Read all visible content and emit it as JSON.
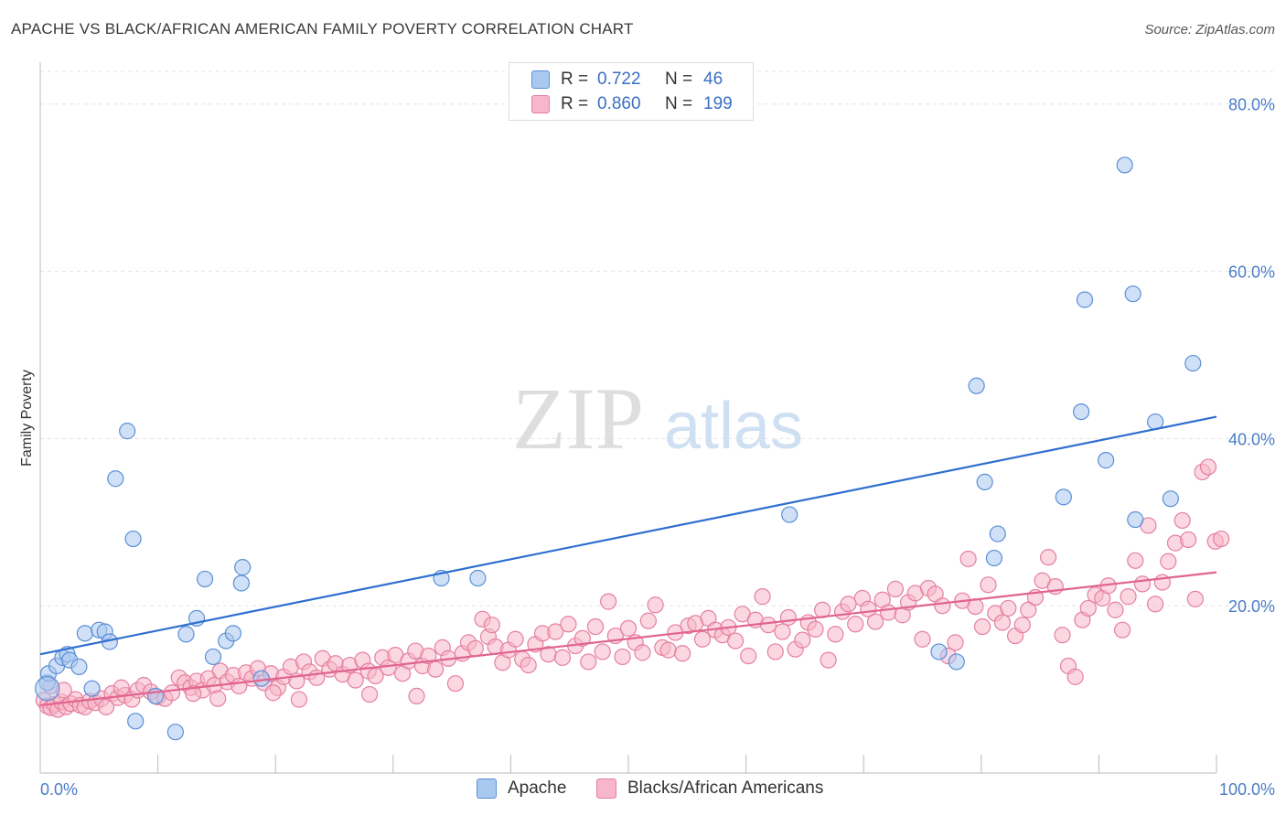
{
  "title": "APACHE VS BLACK/AFRICAN AMERICAN FAMILY POVERTY CORRELATION CHART",
  "source": "Source: ZipAtlas.com",
  "watermark": {
    "zip": "ZIP",
    "atlas": "atlas"
  },
  "legend": {
    "rows": [
      {
        "r_label": "R =",
        "r_value": "0.722",
        "n_label": "N =",
        "n_value": "46"
      },
      {
        "r_label": "R =",
        "r_value": "0.860",
        "n_label": "N =",
        "n_value": "199"
      }
    ]
  },
  "bottom_legend": {
    "apache": "Apache",
    "black": "Blacks/African Americans"
  },
  "colors": {
    "apache_fill": "#a9c8f0",
    "apache_stroke": "#5b8fd6",
    "apache_line": "#2e6fcf",
    "black_fill": "#f7b6c9",
    "black_stroke": "#e57fa1",
    "black_line": "#e0648f",
    "tick_text": "#4a7cc7",
    "grid": "#e3e3e3"
  },
  "chart_data": {
    "type": "scatter",
    "title": "APACHE VS BLACK/AFRICAN AMERICAN FAMILY POVERTY CORRELATION CHART",
    "xlabel": "",
    "ylabel": "Family Poverty",
    "xlim": [
      0,
      100
    ],
    "ylim": [
      0,
      85
    ],
    "x_tick_labels": [
      "0.0%",
      "100.0%"
    ],
    "y_ticks": [
      20,
      40,
      60,
      80
    ],
    "y_tick_labels": [
      "20.0%",
      "40.0%",
      "60.0%",
      "80.0%"
    ],
    "grid": true,
    "legend_position": "top-center",
    "series": [
      {
        "name": "Apache",
        "r": 0.722,
        "n": 46,
        "trend": {
          "x": [
            0,
            100
          ],
          "y": [
            14.2,
            42.6
          ]
        },
        "points": [
          [
            0.6,
            10.8
          ],
          [
            0.7,
            11.9
          ],
          [
            1.4,
            12.8
          ],
          [
            1.9,
            13.8
          ],
          [
            2.3,
            14.2
          ],
          [
            2.5,
            13.5
          ],
          [
            3.3,
            12.7
          ],
          [
            3.8,
            16.7
          ],
          [
            4.4,
            10.1
          ],
          [
            5.0,
            17.1
          ],
          [
            5.5,
            16.9
          ],
          [
            5.9,
            15.7
          ],
          [
            6.4,
            35.2
          ],
          [
            7.4,
            40.9
          ],
          [
            7.9,
            28.0
          ],
          [
            8.1,
            6.2
          ],
          [
            9.8,
            9.2
          ],
          [
            11.5,
            4.9
          ],
          [
            12.4,
            16.6
          ],
          [
            13.3,
            18.5
          ],
          [
            14.0,
            23.2
          ],
          [
            14.7,
            13.9
          ],
          [
            15.8,
            15.8
          ],
          [
            16.4,
            16.7
          ],
          [
            17.1,
            22.7
          ],
          [
            17.2,
            24.6
          ],
          [
            18.8,
            11.3
          ],
          [
            34.1,
            23.3
          ],
          [
            37.2,
            23.3
          ],
          [
            63.7,
            30.9
          ],
          [
            76.4,
            14.5
          ],
          [
            77.9,
            13.3
          ],
          [
            79.6,
            46.3
          ],
          [
            80.3,
            34.8
          ],
          [
            81.1,
            25.7
          ],
          [
            81.4,
            28.6
          ],
          [
            87.0,
            33.0
          ],
          [
            88.5,
            43.2
          ],
          [
            88.8,
            56.6
          ],
          [
            90.6,
            37.4
          ],
          [
            92.2,
            72.7
          ],
          [
            92.9,
            57.3
          ],
          [
            93.1,
            30.3
          ],
          [
            94.8,
            42.0
          ],
          [
            96.1,
            32.8
          ],
          [
            98.0,
            49.0
          ]
        ]
      },
      {
        "name": "Blacks/African Americans",
        "r": 0.86,
        "n": 199,
        "trend": {
          "x": [
            0,
            100
          ],
          "y": [
            8.1,
            24.0
          ]
        },
        "points": [
          [
            0.3,
            8.7
          ],
          [
            0.6,
            8.0
          ],
          [
            0.9,
            7.8
          ],
          [
            1.2,
            8.2
          ],
          [
            1.5,
            7.6
          ],
          [
            1.8,
            8.5
          ],
          [
            2.2,
            7.9
          ],
          [
            2.6,
            8.3
          ],
          [
            3.0,
            8.8
          ],
          [
            3.4,
            8.1
          ],
          [
            3.8,
            7.9
          ],
          [
            4.2,
            8.6
          ],
          [
            4.7,
            8.4
          ],
          [
            5.2,
            8.9
          ],
          [
            5.6,
            7.9
          ],
          [
            6.1,
            9.5
          ],
          [
            6.6,
            9.0
          ],
          [
            7.2,
            9.3
          ],
          [
            7.8,
            8.8
          ],
          [
            8.3,
            9.9
          ],
          [
            8.8,
            10.5
          ],
          [
            9.4,
            9.7
          ],
          [
            10.0,
            9.1
          ],
          [
            10.6,
            8.9
          ],
          [
            11.2,
            9.6
          ],
          [
            11.8,
            11.4
          ],
          [
            12.3,
            10.8
          ],
          [
            12.8,
            10.2
          ],
          [
            13.3,
            11.0
          ],
          [
            13.8,
            9.9
          ],
          [
            14.3,
            11.3
          ],
          [
            14.8,
            10.5
          ],
          [
            15.3,
            12.2
          ],
          [
            15.9,
            10.9
          ],
          [
            16.4,
            11.7
          ],
          [
            16.9,
            10.4
          ],
          [
            17.5,
            12.0
          ],
          [
            18.0,
            11.3
          ],
          [
            18.5,
            12.5
          ],
          [
            19.0,
            10.8
          ],
          [
            19.6,
            11.9
          ],
          [
            20.2,
            10.2
          ],
          [
            20.7,
            11.5
          ],
          [
            21.3,
            12.7
          ],
          [
            21.8,
            11.0
          ],
          [
            22.4,
            13.3
          ],
          [
            22.9,
            12.1
          ],
          [
            23.5,
            11.4
          ],
          [
            24.0,
            13.7
          ],
          [
            24.6,
            12.4
          ],
          [
            25.1,
            13.1
          ],
          [
            25.7,
            11.8
          ],
          [
            26.3,
            12.9
          ],
          [
            26.8,
            11.1
          ],
          [
            27.4,
            13.5
          ],
          [
            27.9,
            12.2
          ],
          [
            28.5,
            11.6
          ],
          [
            29.1,
            13.8
          ],
          [
            29.6,
            12.6
          ],
          [
            30.2,
            14.1
          ],
          [
            30.8,
            11.9
          ],
          [
            31.3,
            13.4
          ],
          [
            31.9,
            14.6
          ],
          [
            32.5,
            12.8
          ],
          [
            33.0,
            14.0
          ],
          [
            33.6,
            12.4
          ],
          [
            34.2,
            15.0
          ],
          [
            34.7,
            13.7
          ],
          [
            35.3,
            10.7
          ],
          [
            35.9,
            14.3
          ],
          [
            36.4,
            15.6
          ],
          [
            37.0,
            14.9
          ],
          [
            37.6,
            18.4
          ],
          [
            38.1,
            16.3
          ],
          [
            38.7,
            15.1
          ],
          [
            39.3,
            13.2
          ],
          [
            39.8,
            14.7
          ],
          [
            40.4,
            16.0
          ],
          [
            41.0,
            13.6
          ],
          [
            41.5,
            12.9
          ],
          [
            42.1,
            15.4
          ],
          [
            42.7,
            16.7
          ],
          [
            43.2,
            14.2
          ],
          [
            43.8,
            16.9
          ],
          [
            44.4,
            13.8
          ],
          [
            44.9,
            17.8
          ],
          [
            45.5,
            15.2
          ],
          [
            46.1,
            16.1
          ],
          [
            46.6,
            13.3
          ],
          [
            47.2,
            17.5
          ],
          [
            47.8,
            14.5
          ],
          [
            48.3,
            20.5
          ],
          [
            48.9,
            16.4
          ],
          [
            49.5,
            13.9
          ],
          [
            50.0,
            17.3
          ],
          [
            50.6,
            15.6
          ],
          [
            51.2,
            14.4
          ],
          [
            51.7,
            18.2
          ],
          [
            52.3,
            20.1
          ],
          [
            52.9,
            15.0
          ],
          [
            53.4,
            14.7
          ],
          [
            54.0,
            16.8
          ],
          [
            54.6,
            14.3
          ],
          [
            55.1,
            17.6
          ],
          [
            55.7,
            17.9
          ],
          [
            56.3,
            16.0
          ],
          [
            56.8,
            18.5
          ],
          [
            57.4,
            17.1
          ],
          [
            58.0,
            16.5
          ],
          [
            58.5,
            17.4
          ],
          [
            59.1,
            15.8
          ],
          [
            59.7,
            19.0
          ],
          [
            60.2,
            14.0
          ],
          [
            60.8,
            18.3
          ],
          [
            61.4,
            21.1
          ],
          [
            61.9,
            17.7
          ],
          [
            62.5,
            14.5
          ],
          [
            63.1,
            16.9
          ],
          [
            63.6,
            18.6
          ],
          [
            64.2,
            14.8
          ],
          [
            64.8,
            15.9
          ],
          [
            65.3,
            18.0
          ],
          [
            65.9,
            17.2
          ],
          [
            66.5,
            19.5
          ],
          [
            67.0,
            13.5
          ],
          [
            67.6,
            16.6
          ],
          [
            68.2,
            19.3
          ],
          [
            68.7,
            20.2
          ],
          [
            69.3,
            17.8
          ],
          [
            69.9,
            20.9
          ],
          [
            70.4,
            19.6
          ],
          [
            71.0,
            18.1
          ],
          [
            71.6,
            20.7
          ],
          [
            72.1,
            19.2
          ],
          [
            72.7,
            22.0
          ],
          [
            73.3,
            18.9
          ],
          [
            73.8,
            20.4
          ],
          [
            74.4,
            21.5
          ],
          [
            75.0,
            16.0
          ],
          [
            75.5,
            22.1
          ],
          [
            76.1,
            21.4
          ],
          [
            76.7,
            20.0
          ],
          [
            77.2,
            14.0
          ],
          [
            77.8,
            15.6
          ],
          [
            78.4,
            20.6
          ],
          [
            78.9,
            25.6
          ],
          [
            79.5,
            19.9
          ],
          [
            80.1,
            17.5
          ],
          [
            80.6,
            22.5
          ],
          [
            81.2,
            19.1
          ],
          [
            81.8,
            18.0
          ],
          [
            82.3,
            19.7
          ],
          [
            82.9,
            16.4
          ],
          [
            83.5,
            17.7
          ],
          [
            84.0,
            19.5
          ],
          [
            84.6,
            21.0
          ],
          [
            85.2,
            23.0
          ],
          [
            85.7,
            25.8
          ],
          [
            86.3,
            22.3
          ],
          [
            86.9,
            16.5
          ],
          [
            87.4,
            12.8
          ],
          [
            88.0,
            11.5
          ],
          [
            88.6,
            18.3
          ],
          [
            89.1,
            19.7
          ],
          [
            89.7,
            21.3
          ],
          [
            90.3,
            20.9
          ],
          [
            90.8,
            22.4
          ],
          [
            91.4,
            19.5
          ],
          [
            92.0,
            17.1
          ],
          [
            92.5,
            21.1
          ],
          [
            93.1,
            25.4
          ],
          [
            93.7,
            22.6
          ],
          [
            94.2,
            29.6
          ],
          [
            94.8,
            20.2
          ],
          [
            95.4,
            22.8
          ],
          [
            95.9,
            25.3
          ],
          [
            96.5,
            27.5
          ],
          [
            97.1,
            30.2
          ],
          [
            97.6,
            27.9
          ],
          [
            98.2,
            20.8
          ],
          [
            98.8,
            36.0
          ],
          [
            99.3,
            36.6
          ],
          [
            99.9,
            27.7
          ],
          [
            100.4,
            28.0
          ],
          [
            0.9,
            10.4
          ],
          [
            2.0,
            9.9
          ],
          [
            6.9,
            10.2
          ],
          [
            13.0,
            9.5
          ],
          [
            15.1,
            8.9
          ],
          [
            19.8,
            9.6
          ],
          [
            22.0,
            8.8
          ],
          [
            28.0,
            9.4
          ],
          [
            32.0,
            9.2
          ],
          [
            38.4,
            17.7
          ]
        ]
      }
    ]
  }
}
